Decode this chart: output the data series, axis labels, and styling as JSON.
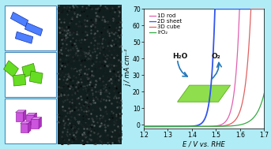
{
  "bg_color": "#b0ecf5",
  "plot_bg": "#ffffff",
  "xlim": [
    1.2,
    1.7
  ],
  "ylim": [
    -2,
    70
  ],
  "xlabel": "E / V vs. RHE",
  "ylabel": "j / mA cm⁻²",
  "yticks": [
    0,
    10,
    20,
    30,
    40,
    50,
    60,
    70
  ],
  "xticks": [
    1.2,
    1.3,
    1.4,
    1.5,
    1.6,
    1.7
  ],
  "legend_labels": [
    "1D rod",
    "2D sheet",
    "3D cube",
    "IrO₂"
  ],
  "line_colors": [
    "#e060b0",
    "#3355ee",
    "#e06060",
    "#33aa44"
  ],
  "onset_voltages": [
    1.52,
    1.43,
    1.55,
    1.6
  ],
  "steepness": [
    55,
    65,
    45,
    30
  ],
  "axis_fontsize": 6,
  "tick_fontsize": 5.5,
  "legend_fontsize": 5,
  "h2o_label": "H₂O",
  "o2_label": "O₂",
  "bg_box_color": "#c5eff8",
  "shape_colors_blue": "#4d7fff",
  "shape_colors_green": "#66dd22",
  "shape_colors_purple": "#cc55dd",
  "sem_bg": "#111e1e"
}
